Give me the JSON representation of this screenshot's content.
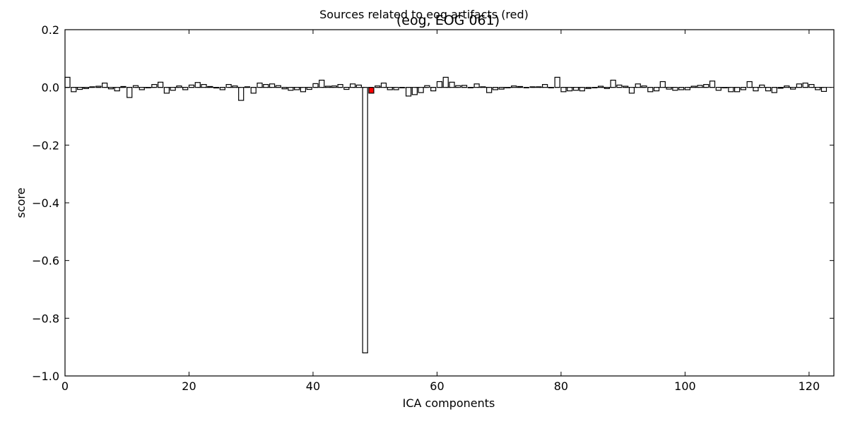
{
  "figure": {
    "suptitle": "Sources related to eog artifacts (red)",
    "title": "(eog, EOG 061)"
  },
  "chart_data": {
    "type": "bar",
    "title": "(eog, EOG 061)",
    "xlabel": "ICA components",
    "ylabel": "score",
    "xlim": [
      0,
      124
    ],
    "ylim": [
      -1.0,
      0.2
    ],
    "xticks": [
      0,
      20,
      40,
      60,
      80,
      100,
      120
    ],
    "yticks": [
      0.2,
      0.0,
      -0.2,
      -0.4,
      -0.6,
      -0.8,
      -1.0
    ],
    "xtick_labels": [
      "0",
      "20",
      "40",
      "60",
      "80",
      "100",
      "120"
    ],
    "ytick_labels": [
      "0.2",
      "0.0",
      "−0.2",
      "−0.4",
      "−0.6",
      "−0.8",
      "−1.0"
    ],
    "grid": false,
    "colors": {
      "normal": "#ffffff",
      "highlight": "#ff0000",
      "edge": "#000000"
    },
    "highlighted_components": [
      29,
      49
    ],
    "values": [
      0.035,
      -0.015,
      -0.007,
      -0.004,
      0.002,
      0.004,
      0.015,
      -0.005,
      -0.012,
      0.003,
      -0.035,
      0.006,
      -0.008,
      0.0,
      0.01,
      0.018,
      -0.02,
      -0.01,
      0.005,
      -0.008,
      0.008,
      0.017,
      0.01,
      0.003,
      -0.002,
      -0.008,
      0.01,
      0.005,
      -0.045,
      0.002,
      -0.02,
      0.015,
      0.01,
      0.012,
      0.006,
      -0.005,
      -0.01,
      -0.008,
      -0.015,
      -0.007,
      0.013,
      0.025,
      0.004,
      0.005,
      0.01,
      -0.007,
      0.012,
      0.008,
      -0.92,
      -0.02,
      0.005,
      0.015,
      -0.008,
      -0.008,
      0.0,
      -0.03,
      -0.025,
      -0.018,
      0.006,
      -0.012,
      0.02,
      0.035,
      0.018,
      0.006,
      0.007,
      0.0,
      0.012,
      0.002,
      -0.018,
      -0.008,
      -0.006,
      0.0,
      0.005,
      0.003,
      0.0,
      0.002,
      0.002,
      0.01,
      0.0,
      0.035,
      -0.015,
      -0.012,
      -0.01,
      -0.012,
      -0.004,
      0.0,
      0.004,
      -0.004,
      0.025,
      0.008,
      0.004,
      -0.02,
      0.012,
      0.005,
      -0.015,
      -0.012,
      0.02,
      -0.006,
      -0.01,
      -0.008,
      -0.008,
      0.004,
      0.007,
      0.01,
      0.022,
      -0.01,
      0.0,
      -0.015,
      -0.015,
      -0.008,
      0.02,
      -0.012,
      0.008,
      -0.012,
      -0.018,
      -0.003,
      0.005,
      -0.006,
      0.012,
      0.015,
      0.01,
      -0.008,
      -0.014
    ]
  }
}
